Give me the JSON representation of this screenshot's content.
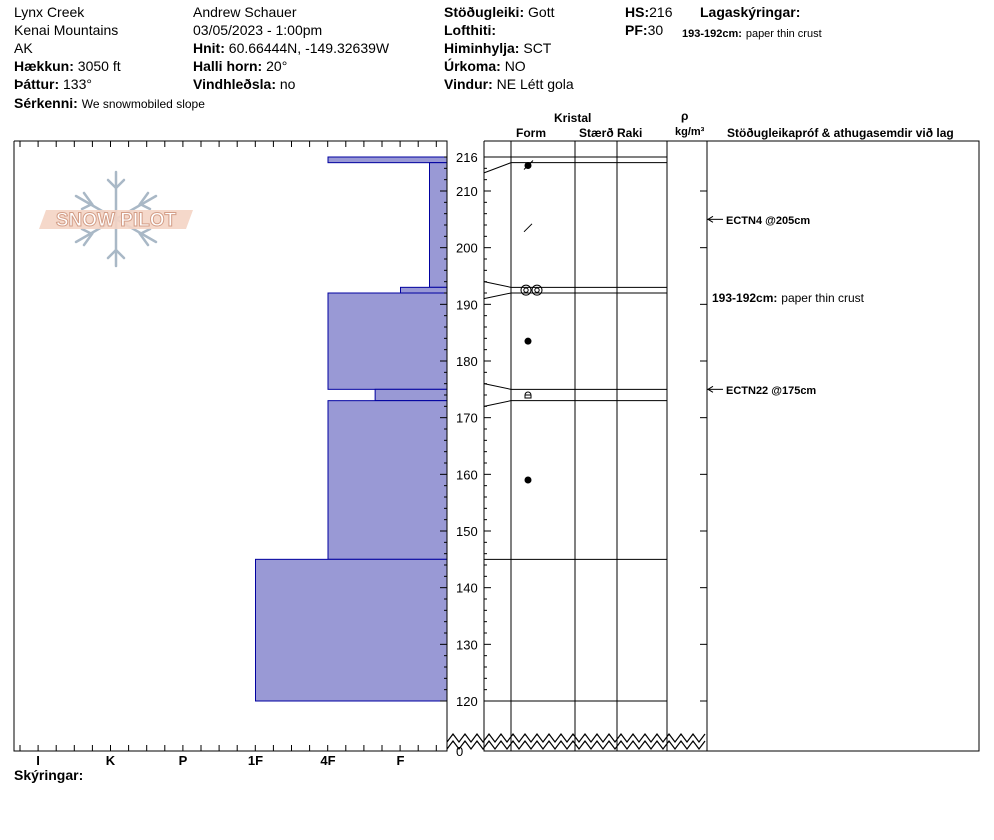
{
  "header": {
    "location": "Lynx Creek",
    "range": "Kenai Mountains",
    "state": "AK",
    "elevation_label": "Hækkun:",
    "elevation_value": "3050 ft",
    "aspect_label": "Þáttur:",
    "aspect_value": "133°",
    "observer": "Andrew Schauer",
    "datetime": "03/05/2023 - 1:00pm",
    "coords_label": "Hnit:",
    "coords_value": "60.66444N, -149.32639W",
    "slope_label": "Halli horn:",
    "slope_value": "20°",
    "wind_loading_label": "Vindhleðsla:",
    "wind_loading_value": "no",
    "stability_label": "Stöðugleiki:",
    "stability_value": "Gott",
    "air_temp_label": "Lofthiti:",
    "air_temp_value": "",
    "sky_label": "Himinhylja:",
    "sky_value": "SCT",
    "precip_label": "Úrkoma:",
    "precip_value": "NO",
    "wind_label": "Vindur:",
    "wind_value": "NE Létt gola",
    "hs_label": "HS:",
    "hs_value": "216",
    "pf_label": "PF:",
    "pf_value": "30",
    "layer_notes_label": "Lagaskýringar:",
    "layer_note_range": "193-192cm:",
    "layer_note_text": "paper thin crust",
    "features_label": "Sérkenni:",
    "features_value": "We snowmobiled slope"
  },
  "logo": {
    "text": "SNOW PILOT"
  },
  "columns": {
    "crystal": "Kristal",
    "form": "Form",
    "size": "Stærð",
    "moisture": "Raki",
    "density_symbol": "ρ",
    "density_unit": "kg/m³",
    "tests_comments": "Stöðugleikapróf & athugasemdir við lag"
  },
  "comments": [
    {
      "depth": 205,
      "text": "ECTN4 @205cm",
      "arrow": true
    },
    {
      "depth": 192.5,
      "label": "193-192cm:",
      "text": "paper thin crust",
      "arrow": false
    },
    {
      "depth": 175,
      "text": "ECTN22 @175cm",
      "arrow": true
    }
  ],
  "footer": {
    "legend_label": "Skýringar:"
  },
  "colors": {
    "hardness_fill": "#9999D5",
    "hardness_stroke": "#0000A0"
  },
  "chart_data": {
    "type": "bar",
    "orientation": "horizontal",
    "title": "",
    "y_axis_label": "",
    "ylim": [
      120,
      216
    ],
    "y_ticks": [
      "216",
      "210",
      "200",
      "190",
      "180",
      "170",
      "160",
      "150",
      "140",
      "130",
      "120"
    ],
    "y_break_label": "0",
    "hardness_scale": [
      "I",
      "K",
      "P",
      "1F",
      "4F",
      "F"
    ],
    "layers": [
      {
        "top": 216,
        "bottom": 215,
        "hardness": "4F"
      },
      {
        "top": 215,
        "bottom": 193,
        "hardness": "F+"
      },
      {
        "top": 193,
        "bottom": 192,
        "hardness": "F"
      },
      {
        "top": 192,
        "bottom": 175,
        "hardness": "4F"
      },
      {
        "top": 175,
        "bottom": 173,
        "hardness": "4F-"
      },
      {
        "top": 173,
        "bottom": 145,
        "hardness": "4F"
      },
      {
        "top": 145,
        "bottom": 120,
        "hardness": "1F"
      }
    ],
    "hardness_index": {
      "F+": 5.4,
      "F": 5.0,
      "4F": 4.0,
      "4F-": 4.65,
      "1F": 3.0
    },
    "grain_forms": [
      {
        "depth": 214.5,
        "form": "decomposing fragments"
      },
      {
        "depth": 203.5,
        "form": "faceted"
      },
      {
        "depth": 192.5,
        "form": "crust"
      },
      {
        "depth": 183.5,
        "form": "rounded"
      },
      {
        "depth": 174,
        "form": "faceted rounded"
      },
      {
        "depth": 159,
        "form": "rounded"
      }
    ]
  }
}
